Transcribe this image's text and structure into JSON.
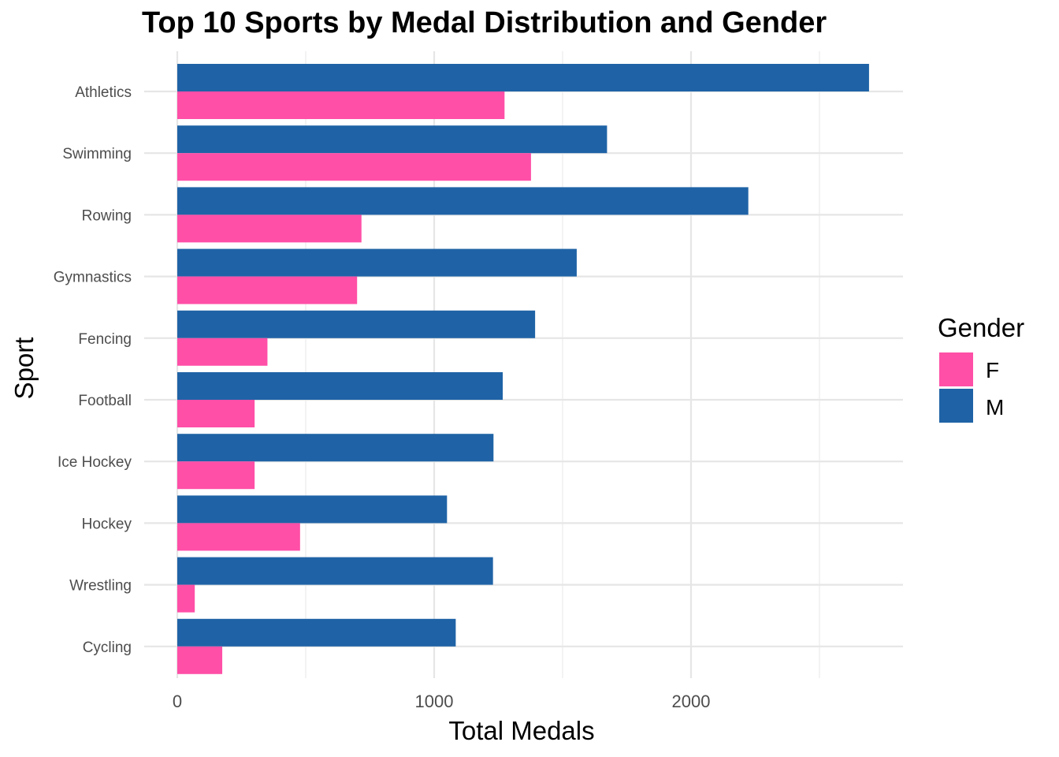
{
  "chart_data": {
    "type": "bar",
    "orientation": "horizontal",
    "title": "Top 10 Sports by Medal Distribution and Gender",
    "xlabel": "Total Medals",
    "ylabel": "Sport",
    "categories": [
      "Athletics",
      "Swimming",
      "Rowing",
      "Gymnastics",
      "Fencing",
      "Football",
      "Ice Hockey",
      "Hockey",
      "Wrestling",
      "Cycling"
    ],
    "series": [
      {
        "name": "M",
        "color": "#1f63a6",
        "values": [
          2693,
          1673,
          2223,
          1555,
          1393,
          1267,
          1231,
          1050,
          1229,
          1084
        ]
      },
      {
        "name": "F",
        "color": "#ff4fa7",
        "values": [
          1274,
          1377,
          717,
          700,
          351,
          301,
          301,
          478,
          68,
          175
        ]
      }
    ],
    "x_ticks": [
      0,
      1000,
      2000
    ],
    "xlim": [
      0,
      2825
    ],
    "grid": true,
    "legend": {
      "title": "Gender",
      "position": "right",
      "entries": [
        "F",
        "M"
      ]
    }
  }
}
